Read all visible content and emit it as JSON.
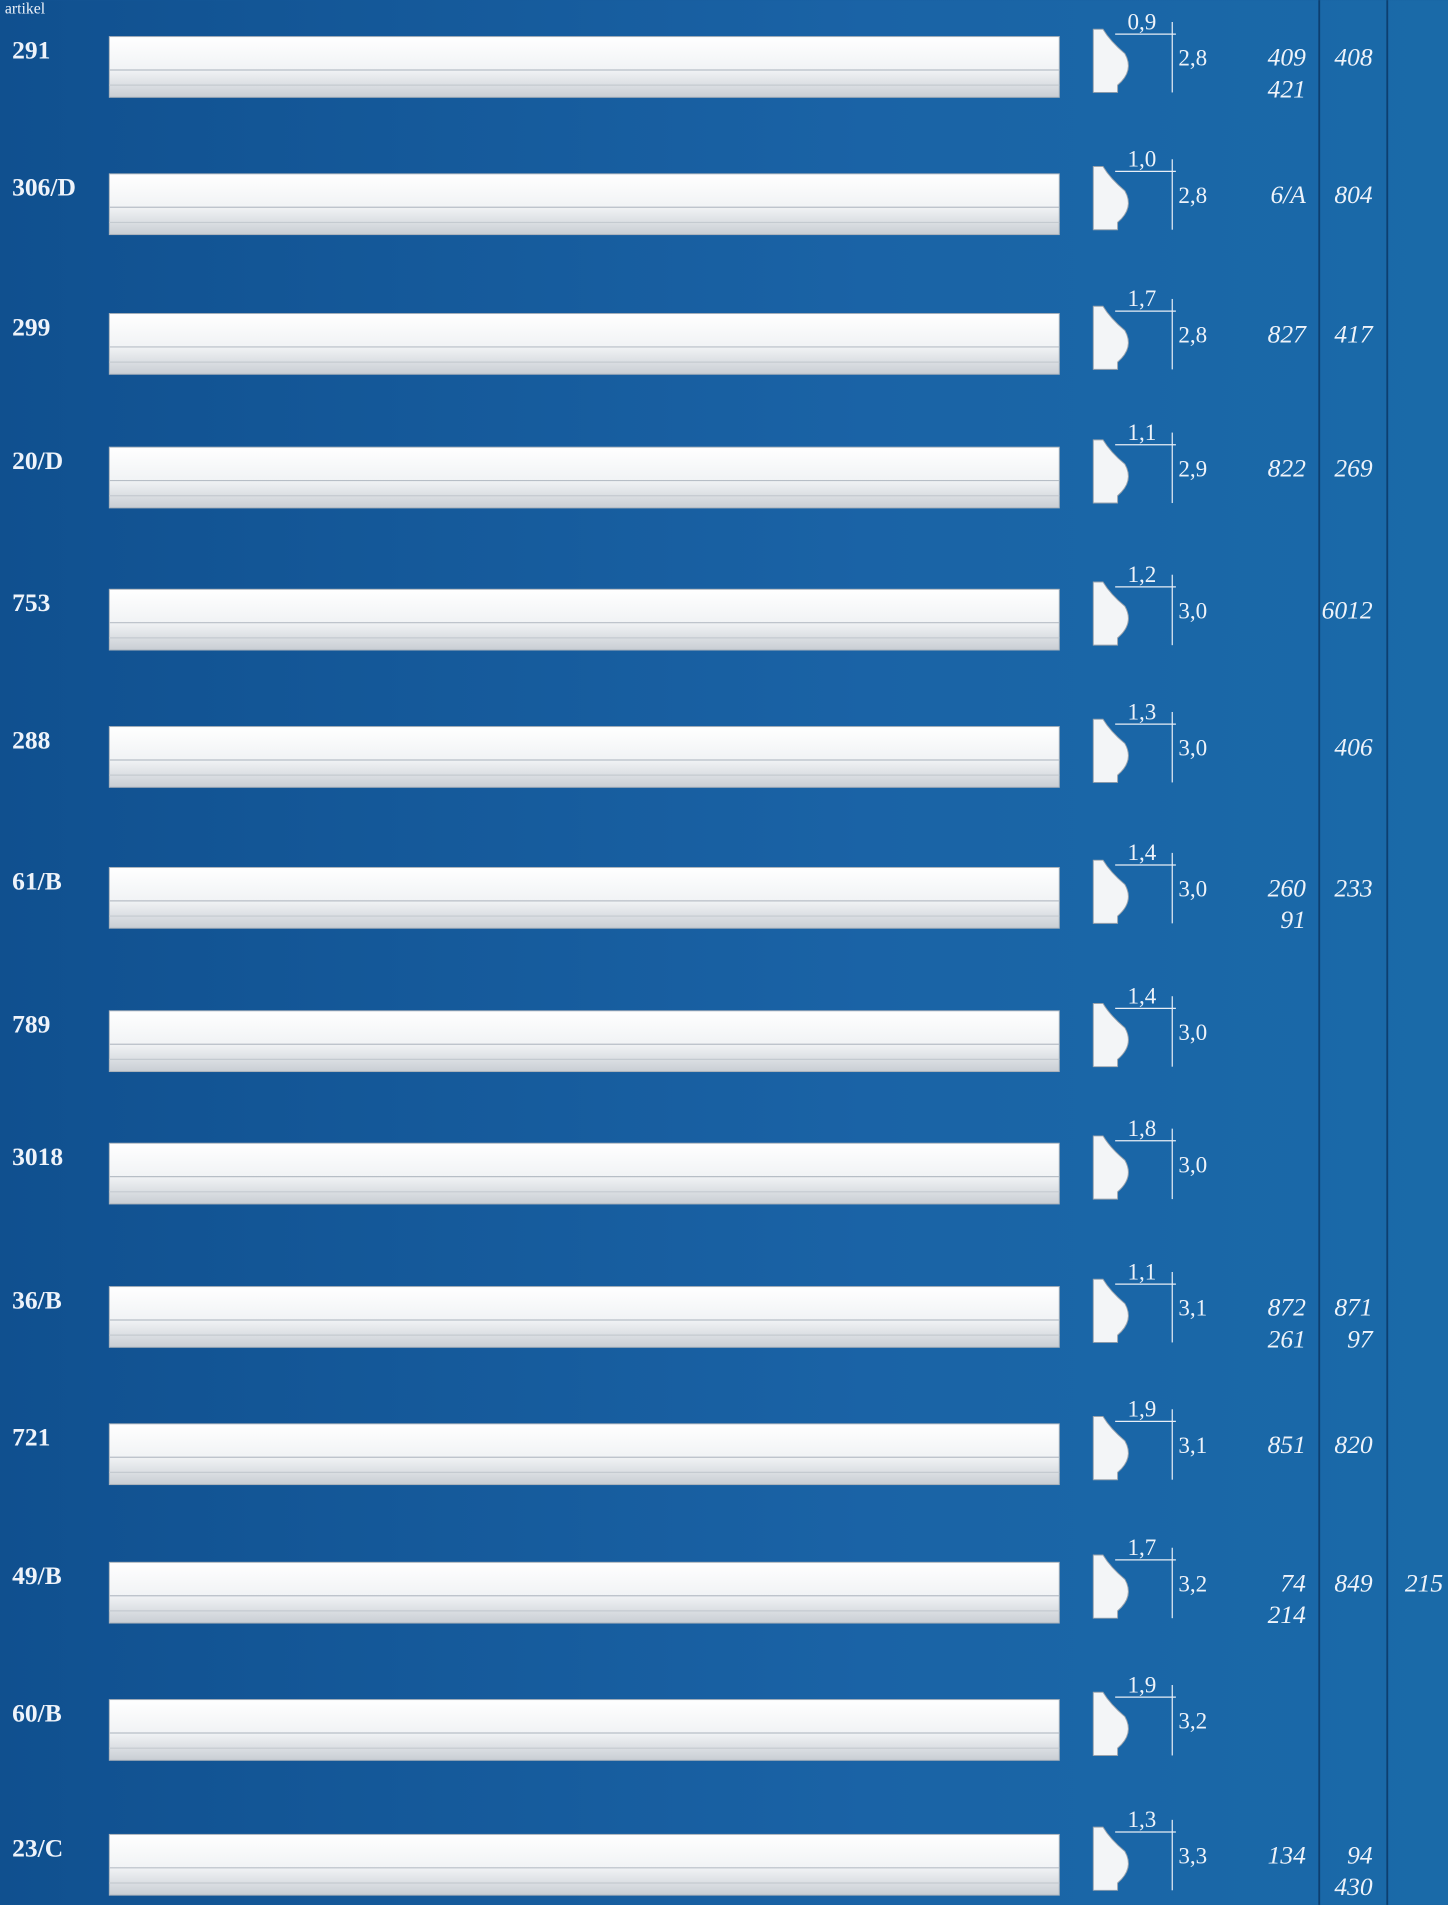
{
  "header": {
    "label": "artikel"
  },
  "rows": [
    {
      "code": "291",
      "depth": "0,9",
      "height": "2,8",
      "col1": [
        "409",
        "421"
      ],
      "col2": [
        "408"
      ]
    },
    {
      "code": "306/D",
      "depth": "1,0",
      "height": "2,8",
      "col1": [
        "6/A"
      ],
      "col2": [
        "804"
      ]
    },
    {
      "code": "299",
      "depth": "1,7",
      "height": "2,8",
      "col1": [
        "827"
      ],
      "col2": [
        "417"
      ]
    },
    {
      "code": "20/D",
      "depth": "1,1",
      "height": "2,9",
      "col1": [
        "822"
      ],
      "col2": [
        "269"
      ]
    },
    {
      "code": "753",
      "depth": "1,2",
      "height": "3,0",
      "col2": [
        "6012"
      ]
    },
    {
      "code": "288",
      "depth": "1,3",
      "height": "3,0",
      "col2": [
        "406"
      ]
    },
    {
      "code": "61/B",
      "depth": "1,4",
      "height": "3,0",
      "col1": [
        "260",
        "91"
      ],
      "col2": [
        "233"
      ]
    },
    {
      "code": "789",
      "depth": "1,4",
      "height": "3,0"
    },
    {
      "code": "3018",
      "depth": "1,8",
      "height": "3,0"
    },
    {
      "code": "36/B",
      "depth": "1,1",
      "height": "3,1",
      "col1": [
        "872",
        "261"
      ],
      "col2": [
        "871",
        "97"
      ]
    },
    {
      "code": "721",
      "depth": "1,9",
      "height": "3,1",
      "col1": [
        "851"
      ],
      "col2": [
        "820"
      ]
    },
    {
      "code": "49/B",
      "depth": "1,7",
      "height": "3,2",
      "col1": [
        "74",
        "214"
      ],
      "col2": [
        "849"
      ],
      "col3": [
        "215"
      ]
    },
    {
      "code": "60/B",
      "depth": "1,9",
      "height": "3,2"
    },
    {
      "code": "23/C",
      "depth": "1,3",
      "height": "3,3",
      "col1": [
        "134"
      ],
      "col2": [
        "94",
        "430"
      ]
    }
  ]
}
